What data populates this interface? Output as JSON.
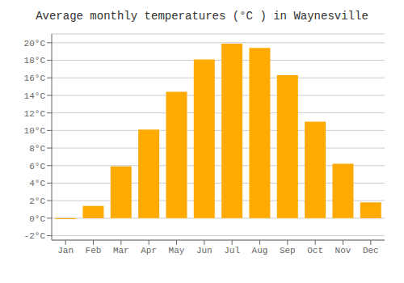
{
  "chart_data": {
    "type": "bar",
    "title": "Average monthly temperatures (°C ) in Waynesville",
    "categories": [
      "Jan",
      "Feb",
      "Mar",
      "Apr",
      "May",
      "Jun",
      "Jul",
      "Aug",
      "Sep",
      "Oct",
      "Nov",
      "Dec"
    ],
    "values": [
      -0.1,
      1.4,
      5.9,
      10.1,
      14.4,
      18.1,
      19.9,
      19.4,
      16.3,
      11.0,
      6.2,
      1.8
    ],
    "color": "#FFAA00",
    "ylim": [
      -2.5,
      21
    ],
    "yticks": [
      {
        "value": -2,
        "label": "-2°C"
      },
      {
        "value": 0,
        "label": "0°C"
      },
      {
        "value": 2,
        "label": "2°C"
      },
      {
        "value": 4,
        "label": "4°C"
      },
      {
        "value": 6,
        "label": "6°C"
      },
      {
        "value": 8,
        "label": "8°C"
      },
      {
        "value": 10,
        "label": "10°C"
      },
      {
        "value": 12,
        "label": "12°C"
      },
      {
        "value": 14,
        "label": "14°C"
      },
      {
        "value": 16,
        "label": "16°C"
      },
      {
        "value": 18,
        "label": "18°C"
      },
      {
        "value": 20,
        "label": "20°C"
      }
    ],
    "grid": true
  }
}
